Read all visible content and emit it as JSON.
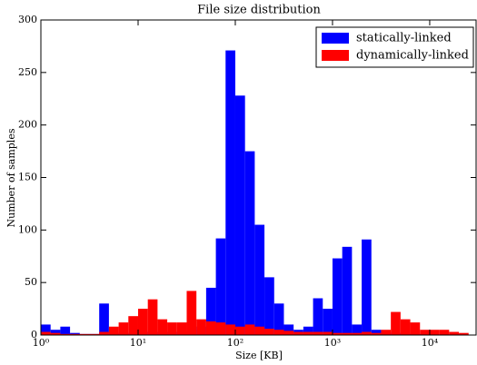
{
  "chart_data": {
    "type": "histogram",
    "title": "File size distribution",
    "x_label": "Size [KB]",
    "y_label": "Number of samples",
    "x_scale": "log",
    "bins": [
      1,
      1.259,
      1.585,
      1.995,
      2.512,
      3.162,
      3.981,
      5.012,
      6.31,
      7.943,
      10,
      12.59,
      15.85,
      19.95,
      25.12,
      31.62,
      39.81,
      50.12,
      63.1,
      79.43,
      100,
      125.9,
      158.5,
      199.5,
      251.2,
      316.2,
      398.1,
      501.2,
      631,
      794.3,
      1000,
      1259,
      1585,
      1995,
      2512,
      3162,
      3981,
      5012,
      6310,
      7943,
      10000,
      12589,
      15849,
      19953,
      25119
    ],
    "series": [
      {
        "name": "statically-linked",
        "color": "#0000ff",
        "values": [
          10,
          5,
          8,
          2,
          1,
          1,
          30,
          3,
          2,
          2,
          3,
          3,
          2,
          3,
          3,
          5,
          8,
          45,
          92,
          271,
          228,
          175,
          105,
          55,
          30,
          10,
          5,
          8,
          35,
          25,
          73,
          84,
          10,
          91,
          5,
          3,
          2,
          2,
          1,
          1,
          0,
          0,
          0,
          0
        ]
      },
      {
        "name": "dynamically-linked",
        "color": "#ff0000",
        "values": [
          3,
          2,
          1,
          1,
          1,
          1,
          3,
          8,
          12,
          18,
          25,
          34,
          15,
          12,
          12,
          42,
          15,
          13,
          12,
          10,
          8,
          10,
          8,
          6,
          5,
          4,
          3,
          3,
          3,
          3,
          2,
          2,
          2,
          3,
          2,
          5,
          22,
          15,
          12,
          5,
          5,
          5,
          3,
          2
        ]
      }
    ],
    "xlim": [
      1,
      30000
    ],
    "xticks": [
      {
        "value": 1,
        "label": "10⁰"
      },
      {
        "value": 10,
        "label": "10¹"
      },
      {
        "value": 100,
        "label": "10²"
      },
      {
        "value": 1000,
        "label": "10³"
      },
      {
        "value": 10000,
        "label": "10⁴"
      }
    ],
    "ylim": [
      0,
      300
    ],
    "yticks": [
      0,
      50,
      100,
      150,
      200,
      250,
      300
    ],
    "legend": "upper right",
    "grid": false
  }
}
